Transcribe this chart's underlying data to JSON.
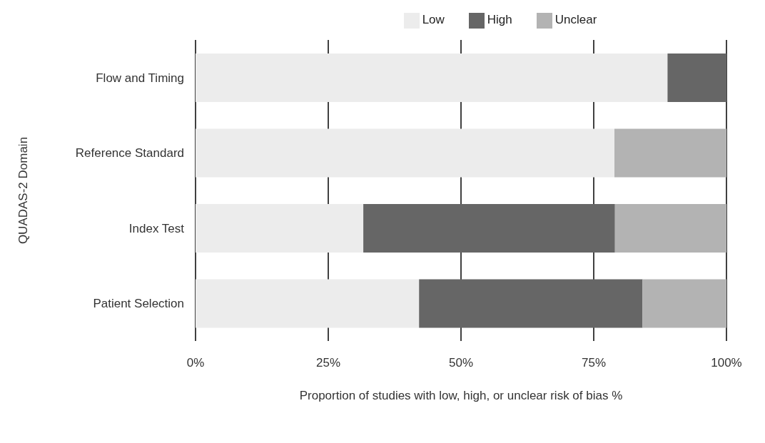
{
  "chart_data": {
    "type": "bar",
    "orientation": "horizontal",
    "stacked": true,
    "xlabel": "Proportion of studies with low, high, or unclear risk of bias %",
    "ylabel": "QUADAS-2 Domain",
    "categories": [
      "Flow and Timing",
      "Reference Standard",
      "Index Test",
      "Patient Selection"
    ],
    "series": [
      {
        "name": "Low",
        "color": "#ececec",
        "values": [
          88.9,
          78.9,
          31.6,
          42.1
        ]
      },
      {
        "name": "High",
        "color": "#666666",
        "values": [
          11.1,
          0,
          47.4,
          42.1
        ]
      },
      {
        "name": "Unclear",
        "color": "#b3b3b3",
        "values": [
          0,
          21.1,
          21.0,
          15.8
        ]
      }
    ],
    "xlim": [
      0,
      100
    ],
    "xticks": [
      {
        "value": 0,
        "label": "0%"
      },
      {
        "value": 25,
        "label": "25%"
      },
      {
        "value": 50,
        "label": "50%"
      },
      {
        "value": 75,
        "label": "75%"
      },
      {
        "value": 100,
        "label": "100%"
      }
    ],
    "grid": "x",
    "legend": "top"
  }
}
